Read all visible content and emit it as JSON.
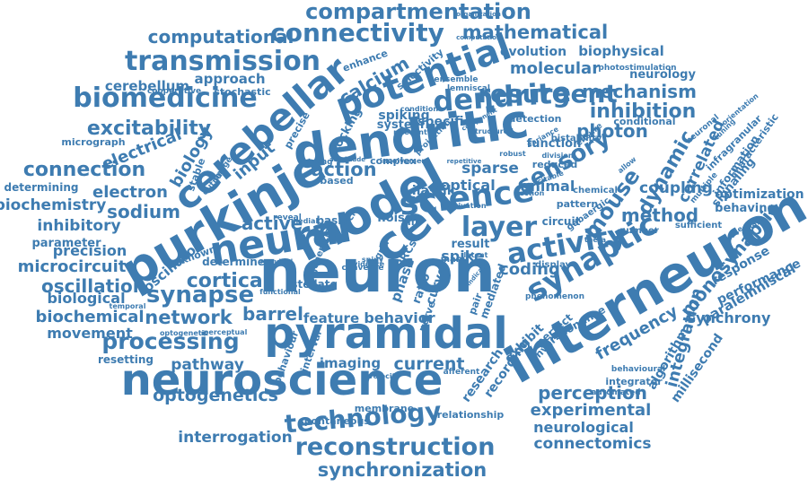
{
  "color": "#3e7cb1",
  "words": [
    "compartmentation",
    "computational",
    "connectivity",
    "mathematical",
    "transmission",
    "evolution",
    "biophysical",
    "molecular",
    "neurology",
    "potential",
    "cerebellar",
    "calcium",
    "resurgent",
    "biomedicine",
    "dendrite",
    "mechanism",
    "cerebellum",
    "approach",
    "excitability",
    "inhibition",
    "photon",
    "biology",
    "electrical",
    "dendritic",
    "sensory",
    "connection",
    "input",
    "action",
    "electron",
    "science",
    "sparse",
    "mouse",
    "biochemistry",
    "sodium",
    "model",
    "optical",
    "animal",
    "dynamic",
    "purkinje",
    "correlated",
    "method",
    "layer",
    "inhibitory",
    "neural",
    "active",
    "cell",
    "activity",
    "parameter",
    "precision",
    "coupling",
    "synaptic",
    "microcircuit",
    "oscillator",
    "neuron",
    "spike",
    "coding",
    "interneuron",
    "oscillation",
    "cortical",
    "synapse",
    "monosynaptic",
    "response",
    "performance",
    "biological",
    "network",
    "barrel",
    "pyramidal",
    "biochemical",
    "movement",
    "frequency",
    "synchrony",
    "processing",
    "behavior",
    "feature",
    "integration",
    "pathway",
    "current",
    "imaging",
    "perception",
    "neuroscience",
    "experimental",
    "optogenetics",
    "technology",
    "neurological",
    "interrogation",
    "reconstruction",
    "connectomics",
    "synchronization",
    "paralemniscal",
    "stellate",
    "resetting",
    "behaving",
    "optimization",
    "signaling",
    "information",
    "algorithm",
    "millisecond",
    "research",
    "recording",
    "exhibit",
    "inverse",
    "perfect",
    "membrane",
    "relationship",
    "spontaneous",
    "integrator",
    "automated",
    "behavioural",
    "resonance",
    "determining",
    "micrograph",
    "bistability",
    "detection",
    "conditional",
    "photostimulation",
    "ensemble",
    "lemniscal",
    "selectivity",
    "enhance",
    "locking",
    "spiking",
    "system",
    "specific",
    "function",
    "reduced",
    "chemical",
    "gabaergic",
    "characteristic",
    "infragranular",
    "mediated",
    "phenomenon",
    "organization",
    "computation",
    "stochastic",
    "cooperative",
    "condition",
    "relevant",
    "based",
    "ilastik",
    "complex",
    "strong",
    "circuit",
    "noise",
    "life",
    "basic",
    "circle",
    "grid",
    "PRCs",
    "phase",
    "curve",
    "result",
    "latent",
    "many",
    "display",
    "pattern",
    "number",
    "sufficient",
    "determine",
    "unknown",
    "temporal",
    "optogenetic",
    "perceptual",
    "behaviour",
    "interval",
    "functional",
    "afferent",
    "velocity",
    "recruited",
    "generation",
    "evidence",
    "reveal",
    "medial",
    "precise",
    "stable",
    "image",
    "output",
    "activation",
    "converge",
    "spiny",
    "ratio",
    "pair",
    "nerve",
    "ensure",
    "neuronal",
    "orientation",
    "multiple",
    "tuning",
    "component",
    "structured",
    "projection",
    "involvement",
    "repetitive",
    "amplitude",
    "robust",
    "variance",
    "division",
    "section",
    "excitable",
    "theta",
    "allow",
    "cause",
    "close",
    "indicate",
    "stained",
    "thalamic",
    "hotspot",
    "prefrontal",
    "saturation",
    "dependency",
    "increase"
  ]
}
